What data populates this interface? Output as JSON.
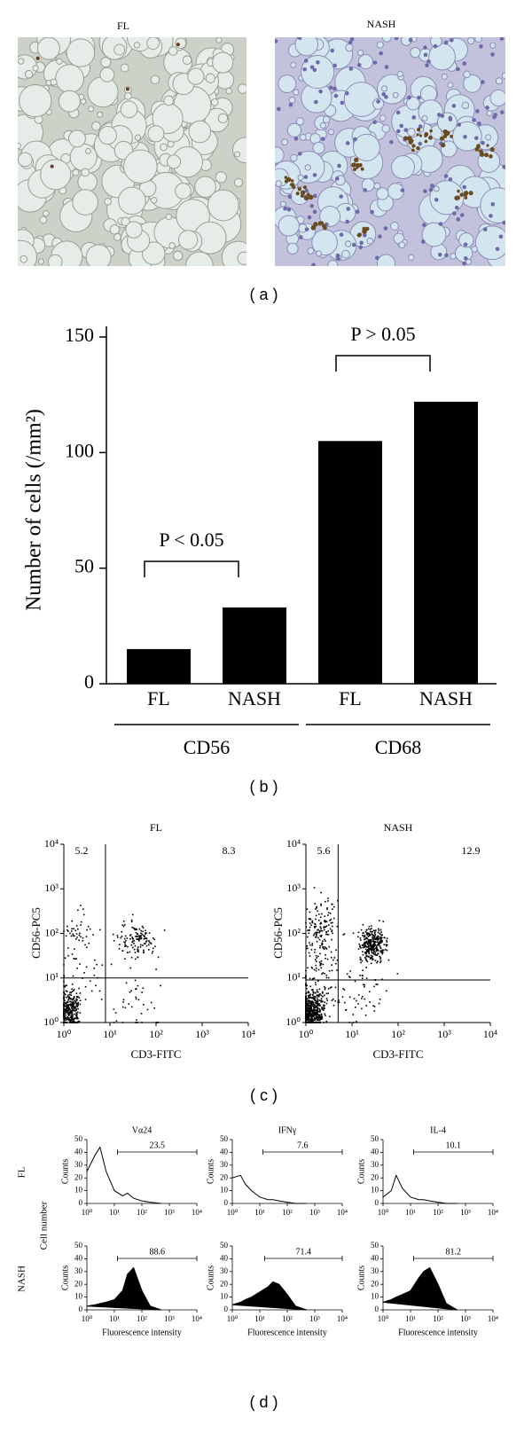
{
  "panel_a": {
    "images": [
      {
        "label": "FL"
      },
      {
        "label": "NASH"
      }
    ],
    "caption": "(a)"
  },
  "chart_data": [
    {
      "type": "bar",
      "caption": "(b)",
      "y_label": "Number of cells (/mm²)",
      "categories": [
        "FL",
        "NASH",
        "FL",
        "NASH"
      ],
      "groups": [
        "CD56",
        null,
        "CD68",
        null
      ],
      "values": [
        15,
        33,
        105,
        122
      ],
      "color": "#000000",
      "ylim": [
        0,
        150
      ],
      "yticks": [
        0,
        50,
        100,
        150
      ],
      "annotations": [
        "P < 0.05",
        "P > 0.05"
      ]
    },
    {
      "type": "scatter",
      "title": "FL",
      "x_label": "CD3-FITC",
      "y_label": "CD56-PC5",
      "quadrant_values": [
        5.2,
        8.3
      ],
      "gate": [
        8,
        10
      ],
      "log": true,
      "xlim": [
        1,
        10000
      ],
      "ylim": [
        1,
        10000
      ],
      "xticks": [
        {
          "value": 1,
          "label": "10⁰"
        },
        {
          "value": 10,
          "label": "10¹"
        },
        {
          "value": 100,
          "label": "10²"
        },
        {
          "value": 1000,
          "label": "10³"
        },
        {
          "value": 10000,
          "label": "10⁴"
        }
      ],
      "yticks": [
        {
          "value": 1,
          "label": "10⁰"
        },
        {
          "value": 10,
          "label": "10¹"
        },
        {
          "value": 100,
          "label": "10²"
        },
        {
          "value": 1000,
          "label": "10³"
        },
        {
          "value": 10000,
          "label": "10⁴"
        }
      ]
    },
    {
      "type": "scatter",
      "title": "NASH",
      "x_label": "CD3-FITC",
      "y_label": "CD56-PC5",
      "quadrant_values": [
        5.6,
        12.9
      ],
      "gate": [
        5,
        9
      ],
      "log": true,
      "xlim": [
        1,
        10000
      ],
      "ylim": [
        1,
        10000
      ],
      "xticks": [
        {
          "value": 1,
          "label": "10⁰"
        },
        {
          "value": 10,
          "label": "10¹"
        },
        {
          "value": 100,
          "label": "10²"
        },
        {
          "value": 1000,
          "label": "10³"
        },
        {
          "value": 10000,
          "label": "10⁴"
        }
      ],
      "yticks": [
        {
          "value": 1,
          "label": "10⁰"
        },
        {
          "value": 10,
          "label": "10¹"
        },
        {
          "value": 100,
          "label": "10²"
        },
        {
          "value": 1000,
          "label": "10³"
        },
        {
          "value": 10000,
          "label": "10⁴"
        }
      ]
    },
    {
      "type": "flow-histogram",
      "title": "Vα24",
      "y_label": "Counts",
      "filled": false,
      "log": true,
      "x": [
        1,
        2,
        3,
        5,
        10,
        20,
        30,
        50,
        100,
        200,
        500
      ],
      "values": [
        25,
        38,
        44,
        25,
        10,
        6,
        8,
        4,
        2,
        1,
        0
      ],
      "gate_range": [
        13,
        10000
      ],
      "gate_value": 23.5,
      "xlim": [
        1,
        10000
      ],
      "ylim": [
        0,
        50
      ],
      "xticks": [
        {
          "value": 1,
          "label": "10⁰"
        },
        {
          "value": 10,
          "label": "10¹"
        },
        {
          "value": 100,
          "label": "10²"
        },
        {
          "value": 1000,
          "label": "10³"
        },
        {
          "value": 10000,
          "label": "10⁴"
        }
      ],
      "yticks": [
        0,
        10,
        20,
        30,
        40,
        50
      ]
    },
    {
      "type": "flow-histogram",
      "title": "IFNγ",
      "y_label": "Counts",
      "filled": false,
      "log": true,
      "x": [
        1,
        2,
        3,
        5,
        10,
        20,
        30,
        50,
        100,
        200,
        500
      ],
      "values": [
        20,
        22,
        15,
        10,
        5,
        3,
        3,
        2,
        1,
        0,
        0
      ],
      "gate_range": [
        13,
        10000
      ],
      "gate_value": 7.6,
      "xlim": [
        1,
        10000
      ],
      "ylim": [
        0,
        50
      ],
      "xticks": [
        {
          "value": 1,
          "label": "10⁰"
        },
        {
          "value": 10,
          "label": "10¹"
        },
        {
          "value": 100,
          "label": "10²"
        },
        {
          "value": 1000,
          "label": "10³"
        },
        {
          "value": 10000,
          "label": "10⁴"
        }
      ],
      "yticks": [
        0,
        10,
        20,
        30,
        40,
        50
      ]
    },
    {
      "type": "flow-histogram",
      "title": "IL-4",
      "y_label": "Counts",
      "filled": false,
      "log": true,
      "x": [
        1,
        2,
        3,
        5,
        10,
        20,
        30,
        50,
        100,
        200,
        500
      ],
      "values": [
        5,
        10,
        22,
        12,
        5,
        3,
        3,
        2,
        1,
        0,
        0
      ],
      "gate_range": [
        13,
        10000
      ],
      "gate_value": 10.1,
      "xlim": [
        1,
        10000
      ],
      "ylim": [
        0,
        50
      ],
      "xticks": [
        {
          "value": 1,
          "label": "10⁰"
        },
        {
          "value": 10,
          "label": "10¹"
        },
        {
          "value": 100,
          "label": "10²"
        },
        {
          "value": 1000,
          "label": "10³"
        },
        {
          "value": 10000,
          "label": "10⁴"
        }
      ],
      "yticks": [
        0,
        10,
        20,
        30,
        40,
        50
      ]
    },
    {
      "type": "flow-histogram",
      "y_label": "Counts",
      "x_label": "Fluorescence intensity",
      "filled": true,
      "log": true,
      "x": [
        1,
        2,
        3,
        5,
        10,
        20,
        30,
        50,
        100,
        200,
        500
      ],
      "values": [
        3,
        4,
        5,
        6,
        8,
        15,
        28,
        33,
        15,
        3,
        0
      ],
      "gate_range": [
        13,
        10000
      ],
      "gate_value": 88.6,
      "xlim": [
        1,
        10000
      ],
      "ylim": [
        0,
        50
      ],
      "xticks": [
        {
          "value": 1,
          "label": "10⁰"
        },
        {
          "value": 10,
          "label": "10¹"
        },
        {
          "value": 100,
          "label": "10²"
        },
        {
          "value": 1000,
          "label": "10³"
        },
        {
          "value": 10000,
          "label": "10⁴"
        }
      ],
      "yticks": [
        0,
        10,
        20,
        30,
        40,
        50
      ]
    },
    {
      "type": "flow-histogram",
      "y_label": "Counts",
      "x_label": "Fluorescence intensity",
      "filled": true,
      "log": true,
      "x": [
        1,
        2,
        3,
        5,
        10,
        20,
        30,
        50,
        100,
        200,
        500
      ],
      "values": [
        4,
        6,
        8,
        10,
        14,
        18,
        22,
        20,
        12,
        3,
        0
      ],
      "gate_range": [
        15,
        10000
      ],
      "gate_value": 71.4,
      "xlim": [
        1,
        10000
      ],
      "ylim": [
        0,
        50
      ],
      "xticks": [
        {
          "value": 1,
          "label": "10⁰"
        },
        {
          "value": 10,
          "label": "10¹"
        },
        {
          "value": 100,
          "label": "10²"
        },
        {
          "value": 1000,
          "label": "10³"
        },
        {
          "value": 10000,
          "label": "10⁴"
        }
      ],
      "yticks": [
        0,
        10,
        20,
        30,
        40,
        50
      ]
    },
    {
      "type": "flow-histogram",
      "y_label": "Counts",
      "x_label": "Fluorescence intensity",
      "filled": true,
      "log": true,
      "x": [
        1,
        2,
        3,
        5,
        10,
        20,
        30,
        50,
        100,
        200,
        500
      ],
      "values": [
        6,
        8,
        10,
        12,
        15,
        25,
        30,
        33,
        20,
        5,
        0
      ],
      "gate_range": [
        13,
        10000
      ],
      "gate_value": 81.2,
      "xlim": [
        1,
        10000
      ],
      "ylim": [
        0,
        50
      ],
      "xticks": [
        {
          "value": 1,
          "label": "10⁰"
        },
        {
          "value": 10,
          "label": "10¹"
        },
        {
          "value": 100,
          "label": "10²"
        },
        {
          "value": 1000,
          "label": "10³"
        },
        {
          "value": 10000,
          "label": "10⁴"
        }
      ],
      "yticks": [
        0,
        10,
        20,
        30,
        40,
        50
      ]
    }
  ],
  "panel_c": {
    "caption": "(c)"
  },
  "panel_d": {
    "row_labels": [
      "FL",
      "NASH"
    ],
    "y_label": "Cell number",
    "caption": "(d)"
  }
}
